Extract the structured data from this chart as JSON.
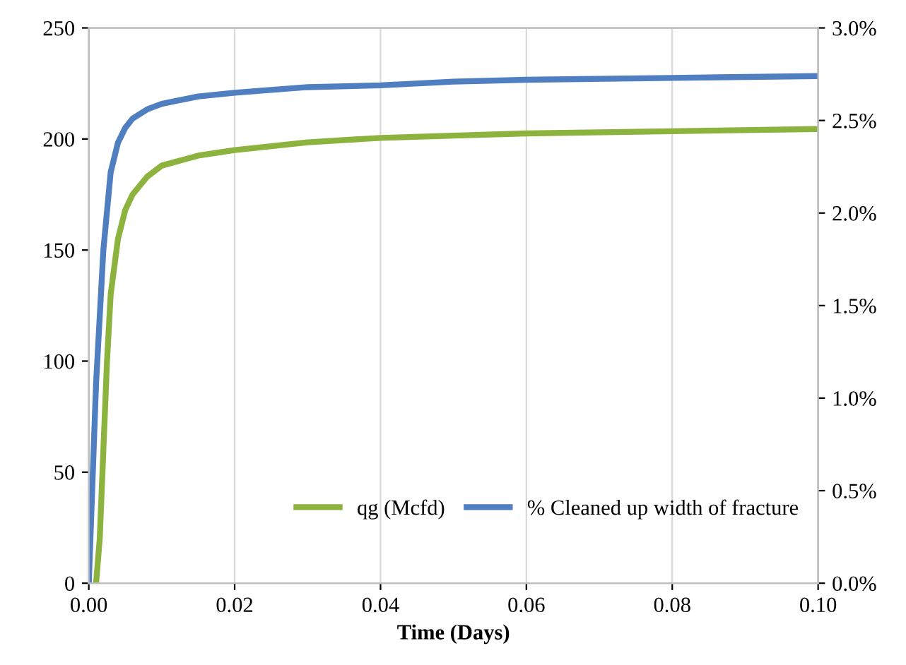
{
  "chart_data": {
    "type": "line",
    "xlabel": "Time (Days)",
    "xlim": [
      0,
      0.1
    ],
    "xticks": [
      {
        "value": 0,
        "label": "0.00"
      },
      {
        "value": 0.02,
        "label": "0.02"
      },
      {
        "value": 0.04,
        "label": "0.04"
      },
      {
        "value": 0.06,
        "label": "0.06"
      },
      {
        "value": 0.08,
        "label": "0.08"
      },
      {
        "value": 0.1,
        "label": "0.10"
      }
    ],
    "ylim": [
      0,
      250
    ],
    "yticks": [
      0,
      50,
      100,
      150,
      200,
      250
    ],
    "y2lim": [
      0,
      3
    ],
    "y2ticks": [
      {
        "value": 0,
        "label": "0.0%"
      },
      {
        "value": 0.5,
        "label": "0.5%"
      },
      {
        "value": 1,
        "label": "1.0%"
      },
      {
        "value": 1.5,
        "label": "1.5%"
      },
      {
        "value": 2,
        "label": "2.0%"
      },
      {
        "value": 2.5,
        "label": "2.5%"
      },
      {
        "value": 3,
        "label": "3.0%"
      }
    ],
    "grid": "x",
    "legend": "bottom right",
    "marker": "none",
    "line_style": "solid",
    "series": [
      {
        "name": "qg (Mcfd)",
        "color": "#8db33f",
        "x": [
          0.001,
          0.0015,
          0.002,
          0.0025,
          0.003,
          0.004,
          0.005,
          0.006,
          0.008,
          0.01,
          0.015,
          0.02,
          0.03,
          0.04,
          0.05,
          0.06,
          0.08,
          0.1
        ],
        "values": [
          0,
          20,
          60,
          100,
          130,
          155,
          168,
          175,
          183,
          188,
          192.5,
          195,
          198.5,
          200.5,
          201.5,
          202.5,
          203.5,
          204.5
        ]
      },
      {
        "name": "% Cleaned up width of fracture",
        "color": "#4f7fc0",
        "axis": "y2",
        "x": [
          0,
          0.001,
          0.002,
          0.003,
          0.004,
          0.005,
          0.006,
          0.008,
          0.01,
          0.015,
          0.02,
          0.03,
          0.04,
          0.05,
          0.06,
          0.08,
          0.1
        ],
        "values": [
          0,
          1.08,
          1.8,
          2.22,
          2.38,
          2.46,
          2.51,
          2.56,
          2.59,
          2.63,
          2.65,
          2.68,
          2.69,
          2.71,
          2.72,
          2.73,
          2.74
        ]
      }
    ]
  }
}
